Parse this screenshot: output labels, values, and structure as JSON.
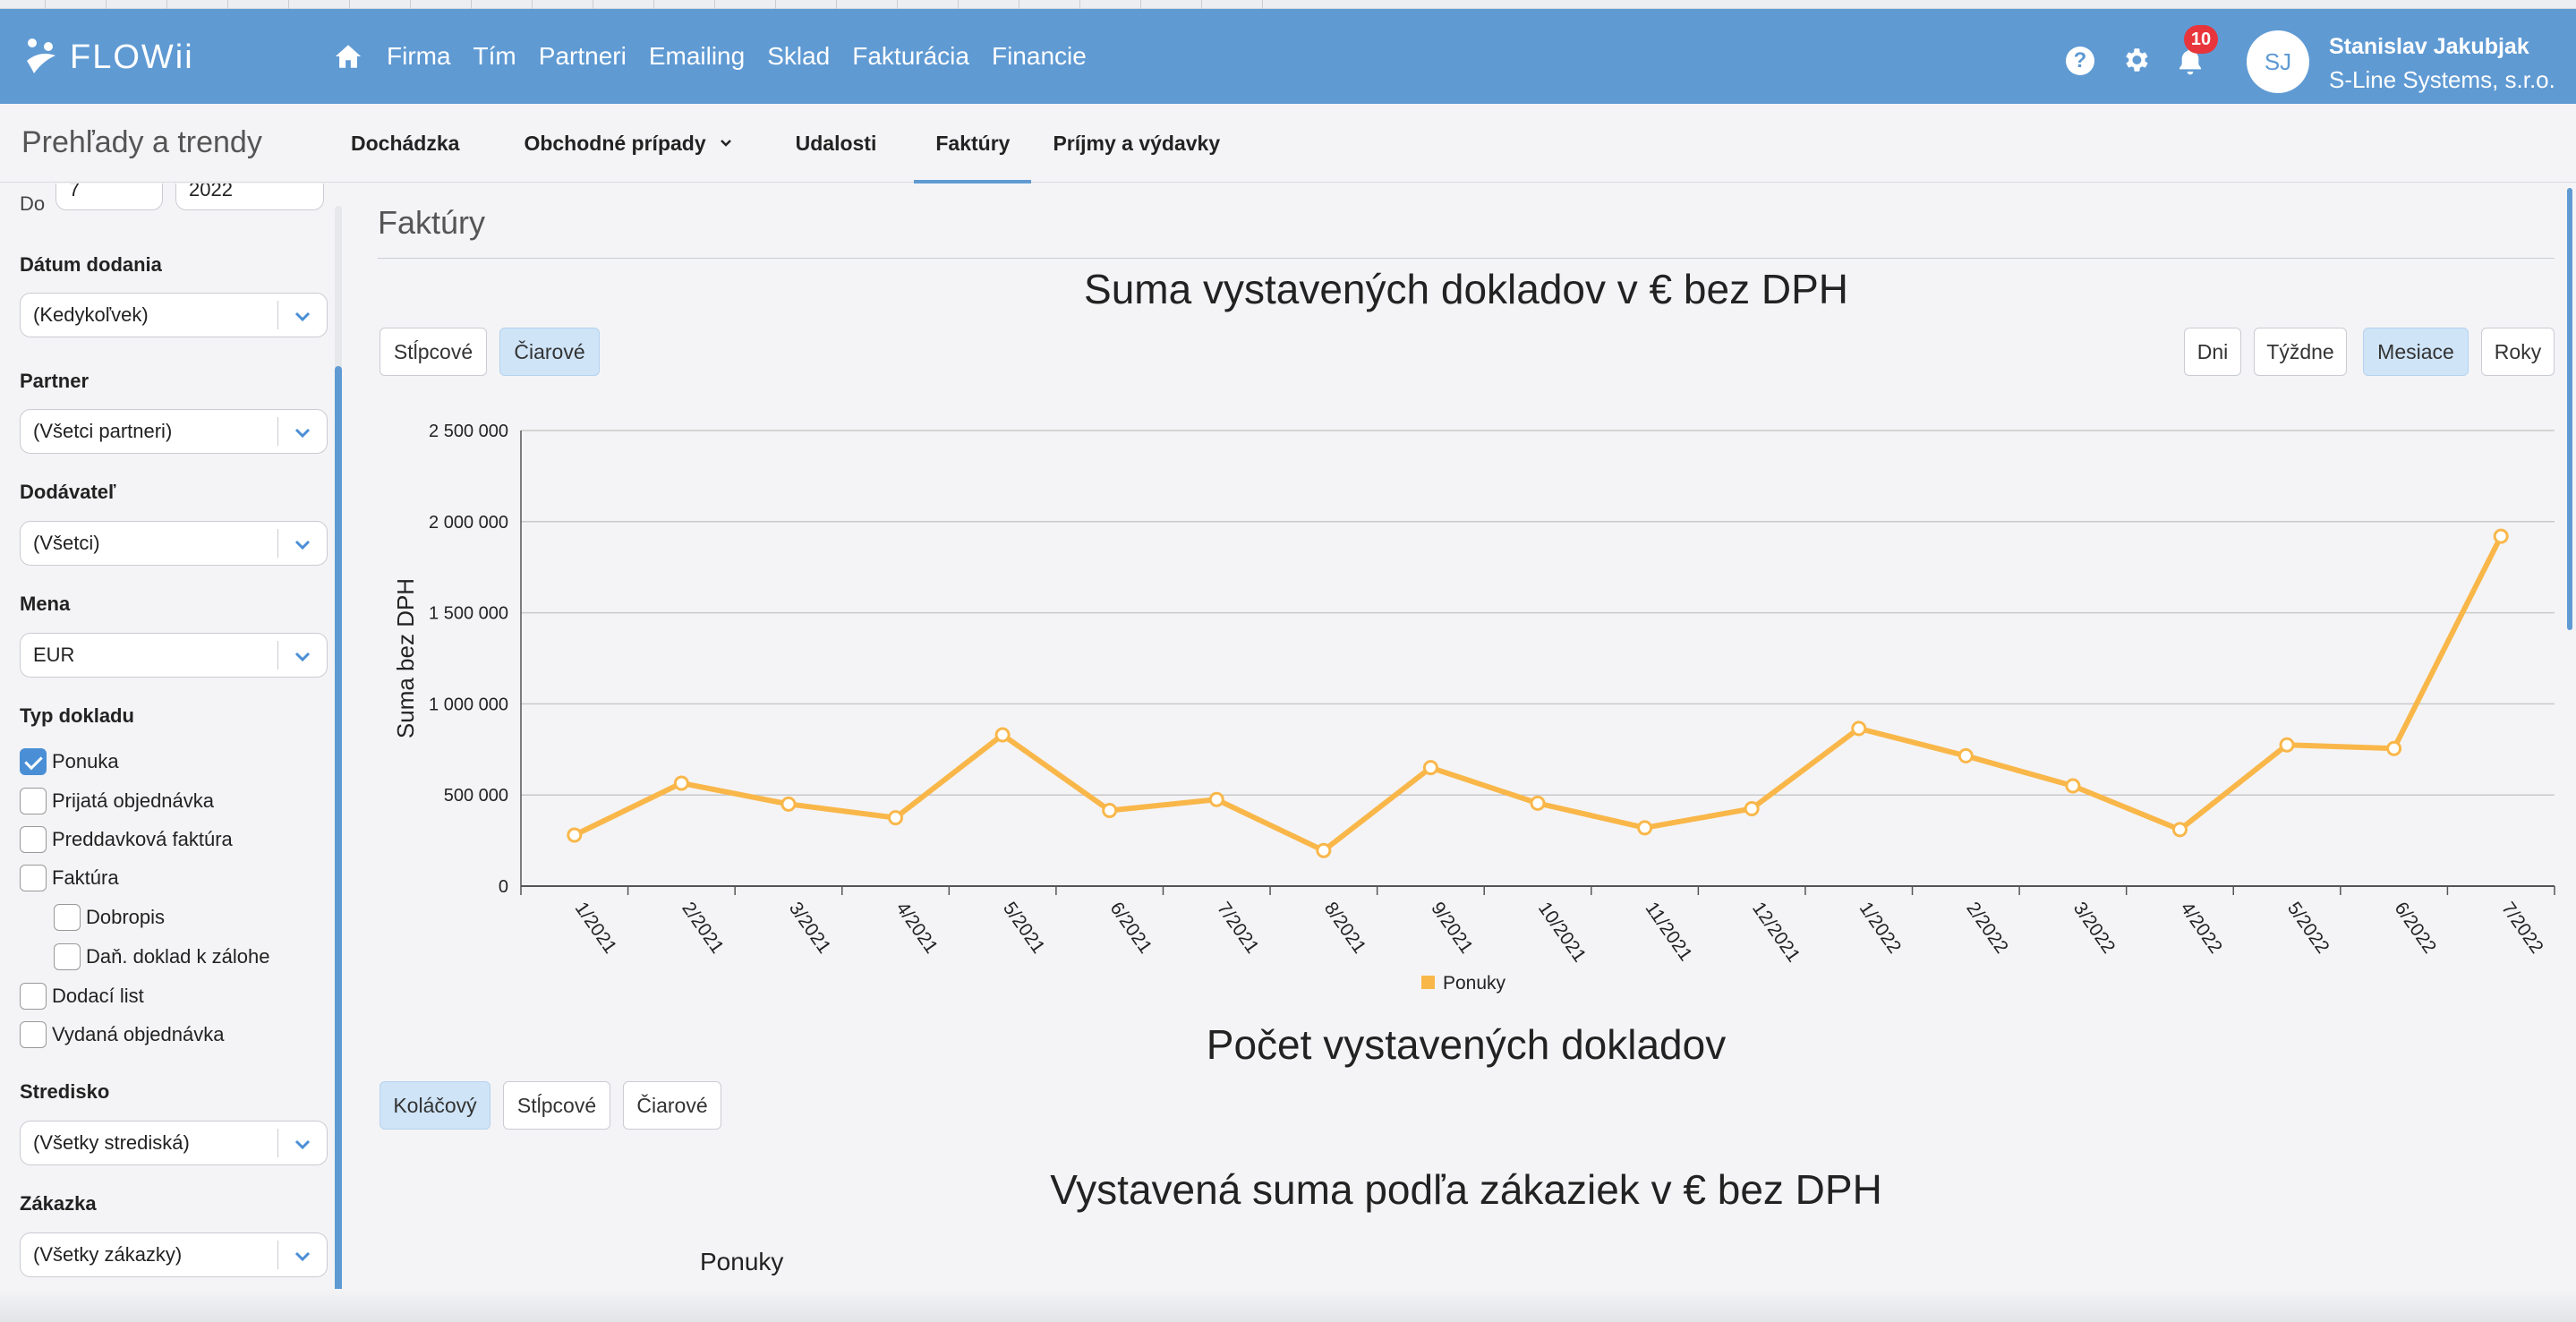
{
  "navbar": {
    "logo_text": "FLOWii",
    "items": [
      "Firma",
      "Tím",
      "Partneri",
      "Emailing",
      "Sklad",
      "Fakturácia",
      "Financie"
    ],
    "notification_count": "10",
    "avatar_initials": "SJ",
    "user_name": "Stanislav Jakubjak",
    "user_company": "S-Line Systems, s.r.o.",
    "help_label": "?"
  },
  "subheader": {
    "title": "Prehľady a trendy",
    "tabs": [
      {
        "label": "Dochádzka",
        "active": false
      },
      {
        "label": "Obchodné prípady",
        "active": false
      },
      {
        "label": "Udalosti",
        "active": false
      },
      {
        "label": "Faktúry",
        "active": true
      },
      {
        "label": "Príjmy a výdavky",
        "active": false
      }
    ]
  },
  "sidebar": {
    "top_partial": {
      "label": "Do",
      "month": "7",
      "year": "2022"
    },
    "filters": [
      {
        "label": "Dátum dodania",
        "value": "(Kedykoľvek)"
      },
      {
        "label": "Partner",
        "value": "(Všetci partneri)"
      },
      {
        "label": "Dodávateľ",
        "value": "(Všetci)"
      },
      {
        "label": "Mena",
        "value": "EUR"
      }
    ],
    "doc_type_label": "Typ dokladu",
    "doc_types": [
      {
        "label": "Ponuka",
        "checked": true,
        "indent": false
      },
      {
        "label": "Prijatá objednávka",
        "checked": false,
        "indent": false
      },
      {
        "label": "Preddavková faktúra",
        "checked": false,
        "indent": false
      },
      {
        "label": "Faktúra",
        "checked": false,
        "indent": false
      },
      {
        "label": "Dobropis",
        "checked": false,
        "indent": true
      },
      {
        "label": "Daň. doklad k zálohe",
        "checked": false,
        "indent": true
      },
      {
        "label": "Dodací list",
        "checked": false,
        "indent": false
      },
      {
        "label": "Vydaná objednávka",
        "checked": false,
        "indent": false
      }
    ],
    "filters_bottom": [
      {
        "label": "Stredisko",
        "value": "(Všetky strediská)"
      },
      {
        "label": "Zákazka",
        "value": "(Všetky zákazky)"
      }
    ]
  },
  "main": {
    "title": "Faktúry",
    "chart1": {
      "title": "Suma vystavených dokladov v € bez DPH",
      "type_buttons": [
        {
          "label": "Stĺpcové",
          "active": false
        },
        {
          "label": "Čiarové",
          "active": true
        }
      ],
      "period_buttons": [
        {
          "label": "Dni",
          "active": false
        },
        {
          "label": "Týždne",
          "active": false
        },
        {
          "label": "Mesiace",
          "active": true
        },
        {
          "label": "Roky",
          "active": false
        }
      ]
    },
    "chart2": {
      "title": "Počet vystavených dokladov",
      "type_buttons": [
        {
          "label": "Koláčový",
          "active": true
        },
        {
          "label": "Stĺpcové",
          "active": false
        },
        {
          "label": "Čiarové",
          "active": false
        }
      ]
    },
    "chart3": {
      "title": "Vystavená suma podľa zákaziek v € bez DPH",
      "pie_label": "Ponuky"
    }
  },
  "chart_data": {
    "type": "line",
    "title": "Suma vystavených dokladov v € bez DPH",
    "xlabel": "",
    "ylabel": "Suma bez DPH",
    "categories": [
      "1/2021",
      "2/2021",
      "3/2021",
      "4/2021",
      "5/2021",
      "6/2021",
      "7/2021",
      "8/2021",
      "9/2021",
      "10/2021",
      "11/2021",
      "12/2021",
      "1/2022",
      "2/2022",
      "3/2022",
      "4/2022",
      "5/2022",
      "6/2022",
      "7/2022"
    ],
    "series": [
      {
        "name": "Ponuky",
        "color": "#f9b74a",
        "values": [
          280000,
          565000,
          450000,
          375000,
          830000,
          415000,
          475000,
          195000,
          650000,
          455000,
          320000,
          425000,
          865000,
          715000,
          550000,
          310000,
          775000,
          755000,
          1920000
        ]
      }
    ],
    "ylim": [
      0,
      2500000
    ],
    "yticks": [
      0,
      500000,
      1000000,
      1500000,
      2000000,
      2500000
    ],
    "ytick_labels": [
      "0",
      "500 000",
      "1 000 000",
      "1 500 000",
      "2 000 000",
      "2 500 000"
    ],
    "grid": true,
    "legend": "bottom-center"
  }
}
